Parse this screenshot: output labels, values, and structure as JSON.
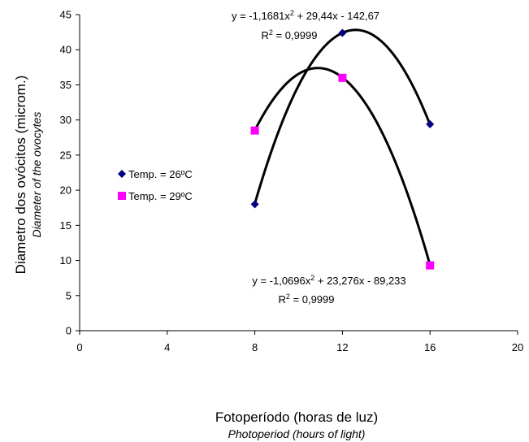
{
  "chart_data": {
    "type": "scatter",
    "xlabel": "Fotoperíodo (horas de luz)",
    "xlabel_sub": "Photoperiod (hours of light)",
    "ylabel": "Diametro dos ovócitos (microm.)",
    "ylabel_sub": "Diameter of the ovocytes",
    "xlim": [
      0,
      20
    ],
    "ylim": [
      0,
      45
    ],
    "xticks": [
      0,
      4,
      8,
      12,
      16,
      20
    ],
    "yticks": [
      0,
      5,
      10,
      15,
      20,
      25,
      30,
      35,
      40,
      45
    ],
    "grid": false,
    "legend_position": "left",
    "series": [
      {
        "name": "Temp. = 26ºC",
        "marker": "diamond",
        "color": "#000080",
        "x": [
          8,
          12,
          16
        ],
        "y": [
          18,
          42.4,
          29.4
        ],
        "trendline": {
          "type": "polynomial",
          "coeffs": [
            -1.1681,
            29.44,
            -142.67
          ],
          "equation_prefix": "y = -1,1681x",
          "equation_exp": "2",
          "equation_suffix": " + 29,44x - 142,67",
          "r2_prefix": "R",
          "r2_exp": "2",
          "r2_suffix": " = 0,9999"
        }
      },
      {
        "name": "Temp. = 29ºC",
        "marker": "square",
        "color": "#ff00ff",
        "x": [
          8,
          12,
          16
        ],
        "y": [
          28.5,
          36,
          9.3
        ],
        "trendline": {
          "type": "polynomial",
          "coeffs": [
            -1.0696,
            23.276,
            -89.233
          ],
          "equation_prefix": "y = -1,0696x",
          "equation_exp": "2",
          "equation_suffix": " + 23,276x - 89,233",
          "r2_prefix": "R",
          "r2_exp": "2",
          "r2_suffix": " = 0,9999"
        }
      }
    ]
  }
}
